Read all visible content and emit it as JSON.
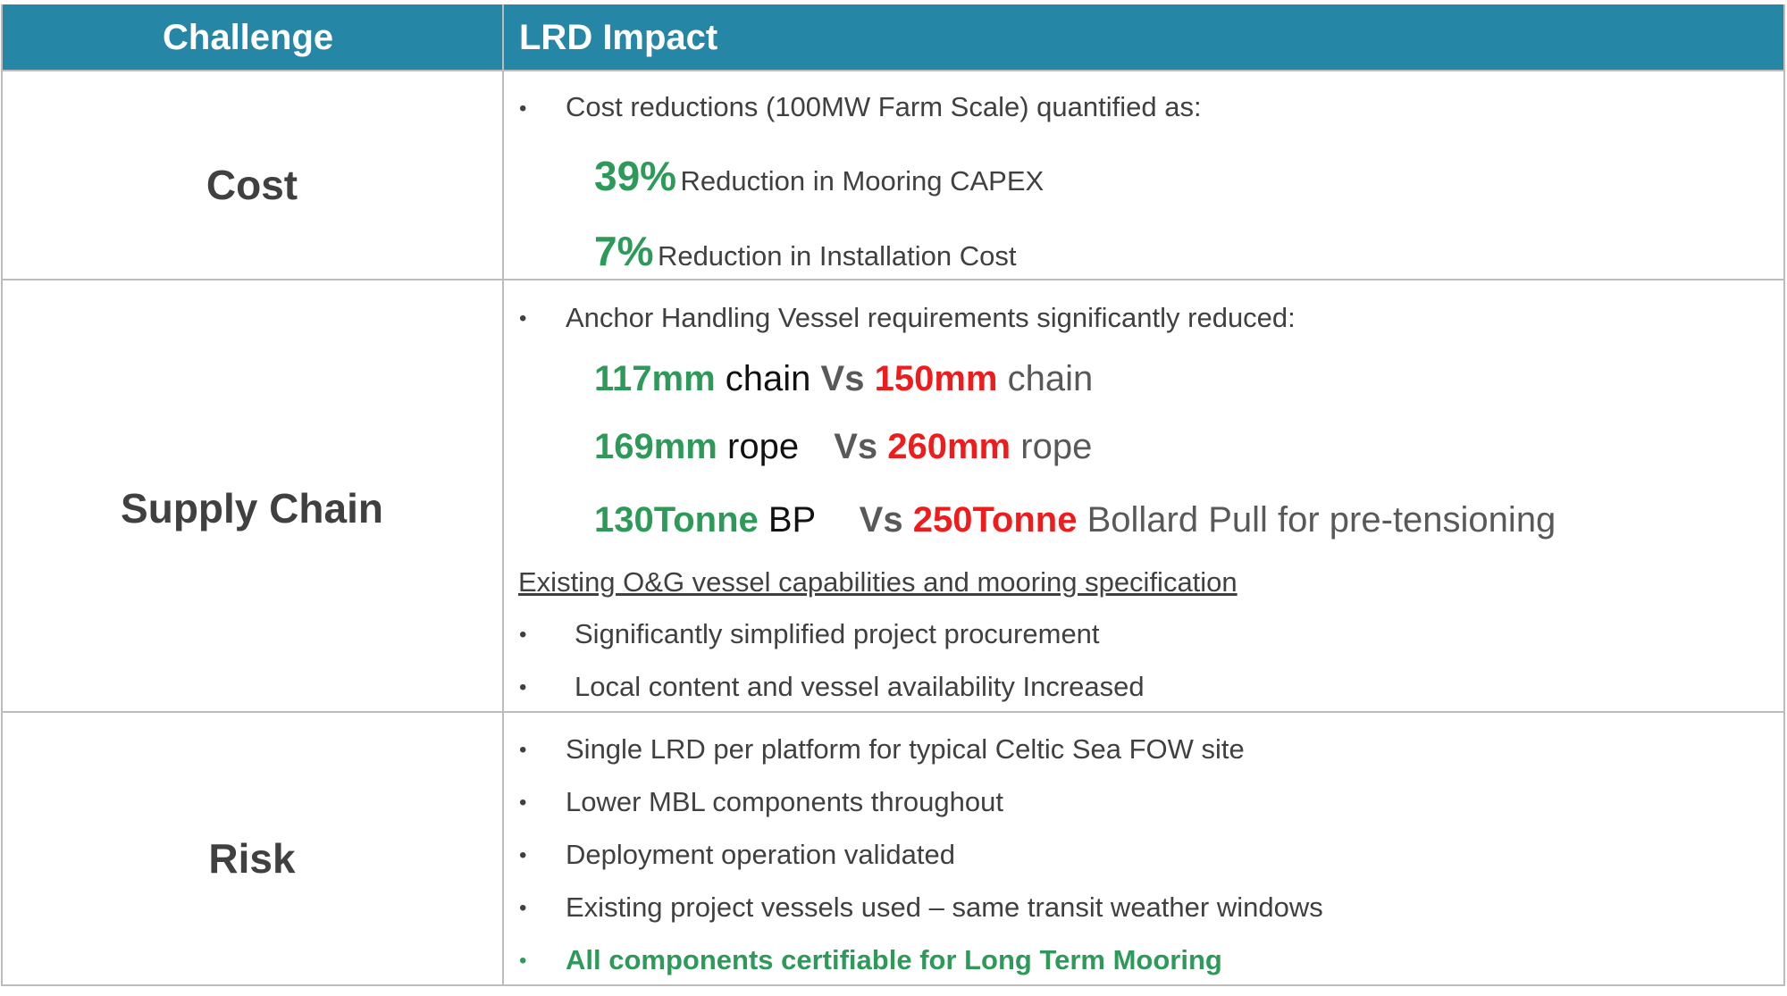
{
  "header": {
    "challenge": "Challenge",
    "impact": "LRD Impact"
  },
  "colors": {
    "header_bg": "#2586a5",
    "green": "#2e9a5a",
    "red": "#ee1c1c",
    "text": "#404040",
    "grid": "#bcbcbc"
  },
  "rows": {
    "cost": {
      "challenge": "Cost",
      "bullet_symbol": "•",
      "intro": "Cost reductions (100MW Farm Scale) quantified as:",
      "stat1_value": "39%",
      "stat1_text": "Reduction in Mooring CAPEX",
      "stat2_value": "7%",
      "stat2_text": "Reduction in Installation Cost"
    },
    "supply": {
      "challenge": "Supply Chain",
      "intro": "Anchor Handling Vessel requirements significantly reduced:",
      "cmp1": {
        "a_val": "117mm",
        "a_unit": "chain",
        "vs": "Vs",
        "b_val": "150mm",
        "b_unit": "chain"
      },
      "cmp2": {
        "a_val": "169mm",
        "a_unit": "rope",
        "vs": "Vs",
        "b_val": "260mm",
        "b_unit": "rope"
      },
      "cmp3": {
        "a_val": "130Tonne",
        "a_unit": "BP",
        "vs": "Vs",
        "b_val": "250Tonne",
        "b_unit": "Bollard Pull for pre-tensioning"
      },
      "subheading": "Existing O&G vessel capabilities and mooring specification",
      "bullets": [
        "Significantly simplified project procurement",
        "Local content and vessel availability Increased"
      ]
    },
    "risk": {
      "challenge": "Risk",
      "bullets": [
        "Single LRD per platform for typical Celtic Sea FOW site",
        "Lower MBL components throughout",
        "Deployment operation validated",
        "Existing project vessels used – same transit weather windows",
        "All components certifiable for Long Term Mooring"
      ]
    }
  }
}
